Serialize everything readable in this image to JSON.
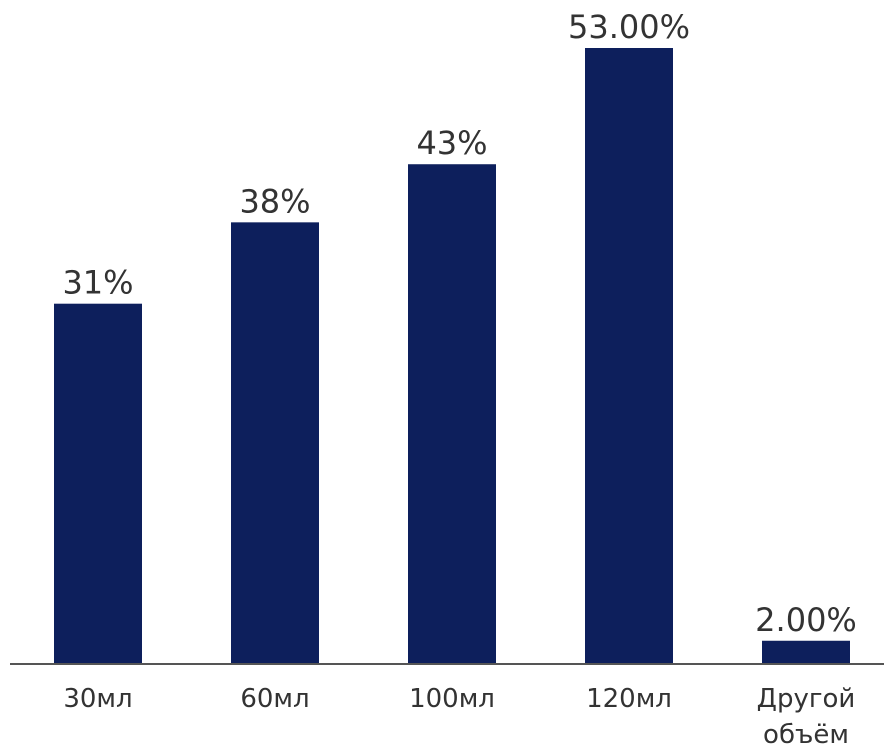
{
  "chart_data": {
    "type": "bar",
    "categories": [
      "30мл",
      "60мл",
      "100мл",
      "120мл",
      "Другой объём"
    ],
    "category_lines": [
      [
        "30мл"
      ],
      [
        "60мл"
      ],
      [
        "100мл"
      ],
      [
        "120мл"
      ],
      [
        "Другой",
        "объём"
      ]
    ],
    "values": [
      31,
      38,
      43,
      53,
      2
    ],
    "value_labels": [
      "31%",
      "38%",
      "43%",
      "53.00%",
      "2.00%"
    ],
    "title": "",
    "xlabel": "",
    "ylabel": "",
    "ylim": [
      0,
      55.5
    ],
    "grid": false,
    "legend": "none",
    "bar_color": "#0d1f5c",
    "axis_color": "#555555",
    "text_color": "#333333"
  }
}
